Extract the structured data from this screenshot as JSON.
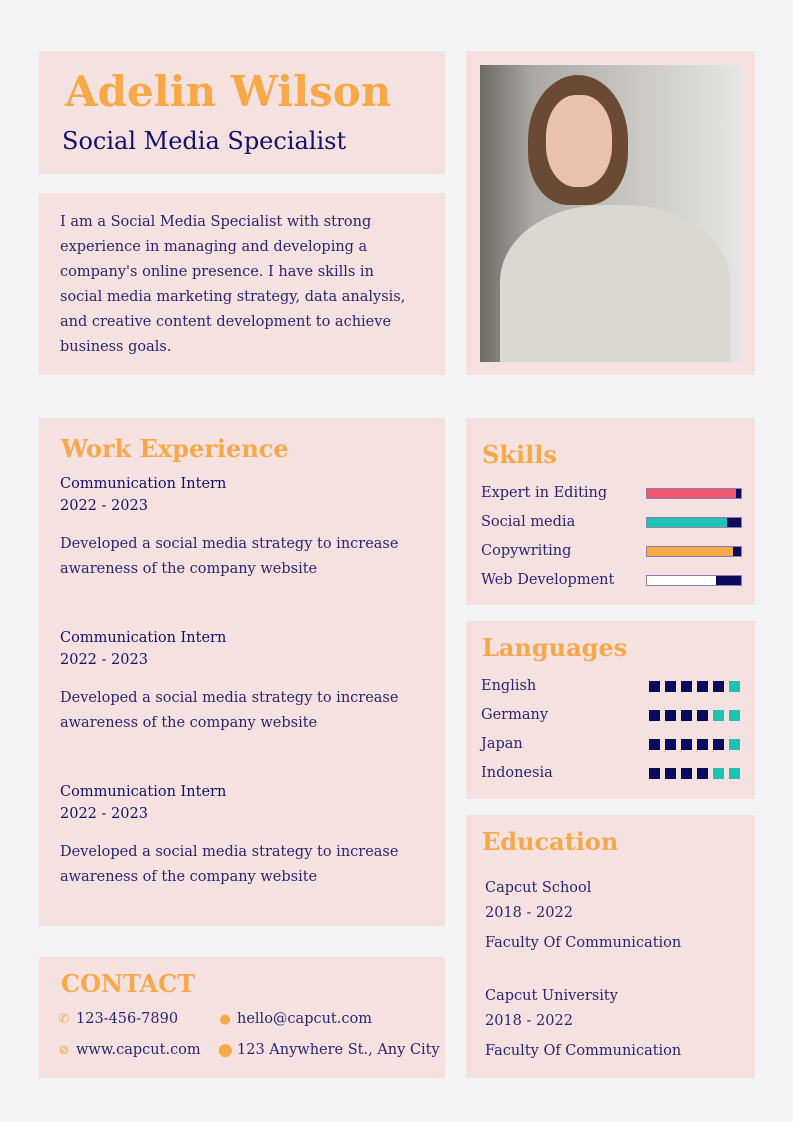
{
  "header": {
    "name": "Adelin Wilson",
    "title": "Social Media Specialist"
  },
  "about": "I am a Social Media Specialist with strong experience in managing and developing a company's online presence. I have skills in social media marketing strategy, data analysis, and creative content development to achieve business goals.",
  "work": {
    "heading": "Work Experience",
    "items": [
      {
        "role": "Communication Intern",
        "years": "2022 - 2023",
        "desc": "Developed a social media strategy to increase awareness of the company website"
      },
      {
        "role": "Communication Intern",
        "years": "2022 - 2023",
        "desc": "Developed a social media strategy to increase awareness of the company website"
      },
      {
        "role": "Communication Intern",
        "years": "2022 - 2023",
        "desc": "Developed a social media strategy to increase awareness of the company website"
      }
    ]
  },
  "contact": {
    "heading": "CONTACT",
    "phone": "123-456-7890",
    "email": "hello@capcut.com",
    "website": "www.capcut.com",
    "address": "123 Anywhere St., Any City"
  },
  "skills": {
    "heading": "Skills",
    "items": [
      {
        "name": "Expert in Editing",
        "level": 95,
        "color": "#f0566e"
      },
      {
        "name": "Social media",
        "level": 85,
        "color": "#1fc2b2"
      },
      {
        "name": "Copywriting",
        "level": 92,
        "color": "#f7a94a"
      },
      {
        "name": "Web Development",
        "level": 73,
        "color": "#ffffff"
      }
    ]
  },
  "languages": {
    "heading": "Languages",
    "items": [
      {
        "name": "English",
        "level": 5,
        "of": 6
      },
      {
        "name": "Germany",
        "level": 4,
        "of": 6
      },
      {
        "name": "Japan",
        "level": 5,
        "of": 6
      },
      {
        "name": "Indonesia",
        "level": 4,
        "of": 6
      }
    ]
  },
  "education": {
    "heading": "Education",
    "items": [
      {
        "school": "Capcut School",
        "years": "2018 - 2022",
        "faculty": "Faculty Of Communication"
      },
      {
        "school": "Capcut University",
        "years": "2018 - 2022",
        "faculty": "Faculty Of Communication"
      }
    ]
  },
  "colors": {
    "accent": "#f7a94a",
    "navy": "#0c0a5c",
    "teal": "#1fc2b2",
    "card": "#f5e1e0"
  }
}
